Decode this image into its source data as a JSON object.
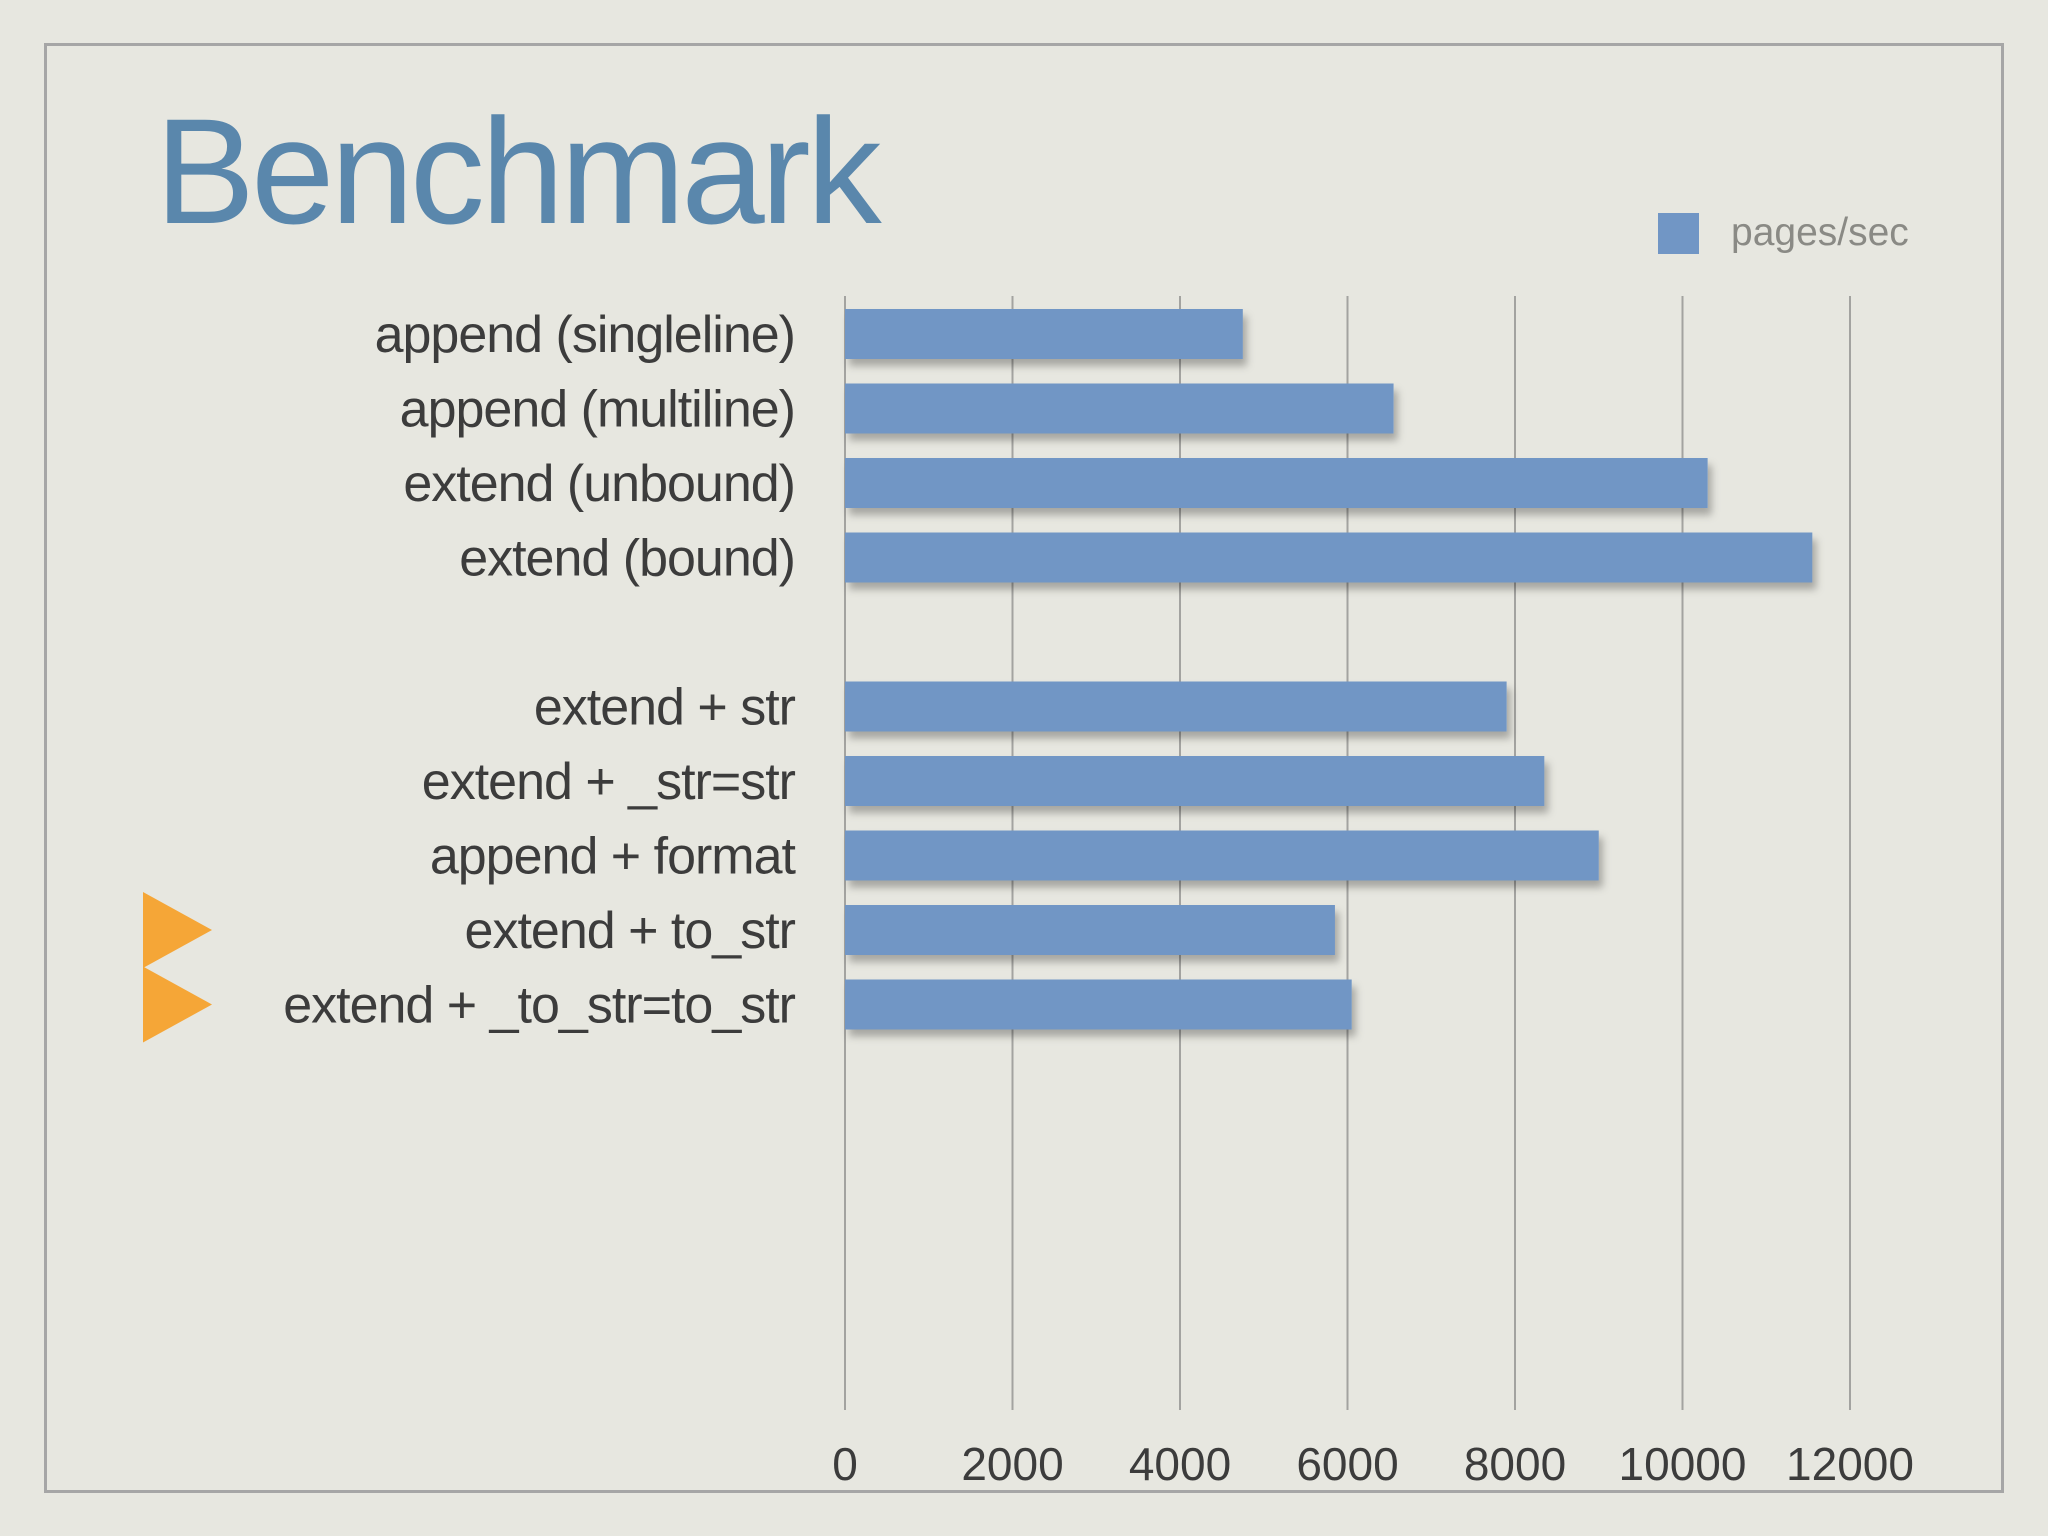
{
  "slide": {
    "title": "Benchmark"
  },
  "chart_data": {
    "type": "bar",
    "orientation": "horizontal",
    "title": "Benchmark",
    "xlabel": "",
    "ylabel": "",
    "xlim": [
      0,
      12000
    ],
    "xticks": [
      "0",
      "2000",
      "4000",
      "6000",
      "8000",
      "10000",
      "12000"
    ],
    "grid": true,
    "legend_position": "top-right",
    "series": [
      {
        "name": "pages/sec",
        "color": "#7196c5",
        "values": [
          4750,
          6550,
          10300,
          11550,
          null,
          7900,
          8350,
          9000,
          5850,
          6050
        ]
      }
    ],
    "categories": [
      "append (singleline)",
      "append (multiline)",
      "extend (unbound)",
      "extend (bound)",
      "",
      "extend + str",
      "extend + _str=str",
      "append + format",
      "extend + to_str",
      "extend + _to_str=to_str"
    ],
    "highlighted_categories": [
      "extend + to_str",
      "extend + _to_str=to_str"
    ],
    "highlight_marker": "orange-triangle-icon",
    "highlight_color": "#f5a637"
  }
}
